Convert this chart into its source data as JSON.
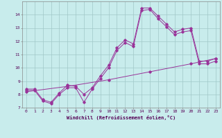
{
  "xlabel": "Windchill (Refroidissement éolien,°C)",
  "bg_color": "#c8ecec",
  "grid_color": "#a0c8c8",
  "line_color": "#993399",
  "xlim": [
    -0.5,
    23.5
  ],
  "ylim": [
    7,
    15
  ],
  "yticks": [
    7,
    8,
    9,
    10,
    11,
    12,
    13,
    14
  ],
  "xticks": [
    0,
    1,
    2,
    3,
    4,
    5,
    6,
    7,
    8,
    9,
    10,
    11,
    12,
    13,
    14,
    15,
    16,
    17,
    18,
    19,
    20,
    21,
    22,
    23
  ],
  "line1_x": [
    0,
    1,
    2,
    3,
    4,
    5,
    6,
    7,
    8,
    9,
    10,
    11,
    12,
    13,
    14,
    15,
    16,
    17,
    18,
    19,
    20,
    21,
    22,
    23
  ],
  "line1_y": [
    8.4,
    8.4,
    7.6,
    7.4,
    8.1,
    8.7,
    8.6,
    8.0,
    8.5,
    9.4,
    10.2,
    11.5,
    12.1,
    11.8,
    14.5,
    14.5,
    13.9,
    13.3,
    12.7,
    12.9,
    13.0,
    10.5,
    10.5,
    10.7
  ],
  "line2_x": [
    0,
    1,
    2,
    3,
    4,
    5,
    6,
    7,
    8,
    9,
    10,
    11,
    12,
    13,
    14,
    15,
    16,
    17,
    18,
    19,
    20,
    21,
    22,
    23
  ],
  "line2_y": [
    8.3,
    8.3,
    7.5,
    7.3,
    8.0,
    8.5,
    8.5,
    7.4,
    8.4,
    9.2,
    10.0,
    11.3,
    11.9,
    11.6,
    14.3,
    14.4,
    13.7,
    13.1,
    12.5,
    12.7,
    12.8,
    10.3,
    10.3,
    10.5
  ],
  "line3_x": [
    0,
    5,
    10,
    15,
    20,
    23
  ],
  "line3_y": [
    8.2,
    8.6,
    9.1,
    9.7,
    10.3,
    10.7
  ]
}
